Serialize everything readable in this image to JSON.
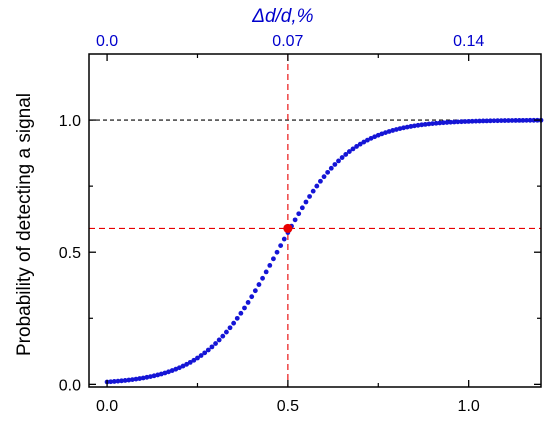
{
  "chart_data": {
    "type": "scatter",
    "title": "",
    "xlabel": "",
    "ylabel": "Probability of detecting a signal",
    "xlim": [
      -0.05,
      1.2
    ],
    "ylim": [
      -0.01,
      1.25
    ],
    "x_ticks": [
      0.0,
      0.5,
      1.0
    ],
    "x_tick_labels": [
      "0.0",
      "0.5",
      "1.0"
    ],
    "y_ticks": [
      0.0,
      0.5,
      1.0
    ],
    "y_tick_labels": [
      "0.0",
      "0.5",
      "1.0"
    ],
    "top_axis": {
      "label": "Δd/d,%",
      "color": "#0000cc",
      "ticks": [
        0.0,
        0.07,
        0.14
      ],
      "tick_labels": [
        "0.0",
        "0.07",
        "0.14"
      ],
      "positions_on_bottom_axis": [
        0.0,
        0.5,
        1.0
      ]
    },
    "grid": false,
    "series": [
      {
        "color": "#1515d6",
        "sigmoid_center": 0.47,
        "sigmoid_width": 0.1,
        "x_start": 0.0,
        "x_end": 1.2,
        "x_step": 0.01
      }
    ],
    "highlight_point": {
      "x": 0.5,
      "y": 0.59,
      "color": "#e80000"
    },
    "reference_lines": [
      {
        "orientation": "horizontal",
        "value": 1.0,
        "color": "#000000",
        "style": "dashed"
      },
      {
        "orientation": "horizontal",
        "value": 0.59,
        "color": "#e80000",
        "style": "dashed"
      },
      {
        "orientation": "vertical",
        "value": 0.5,
        "color": "#e80000",
        "style": "dashed"
      }
    ]
  }
}
